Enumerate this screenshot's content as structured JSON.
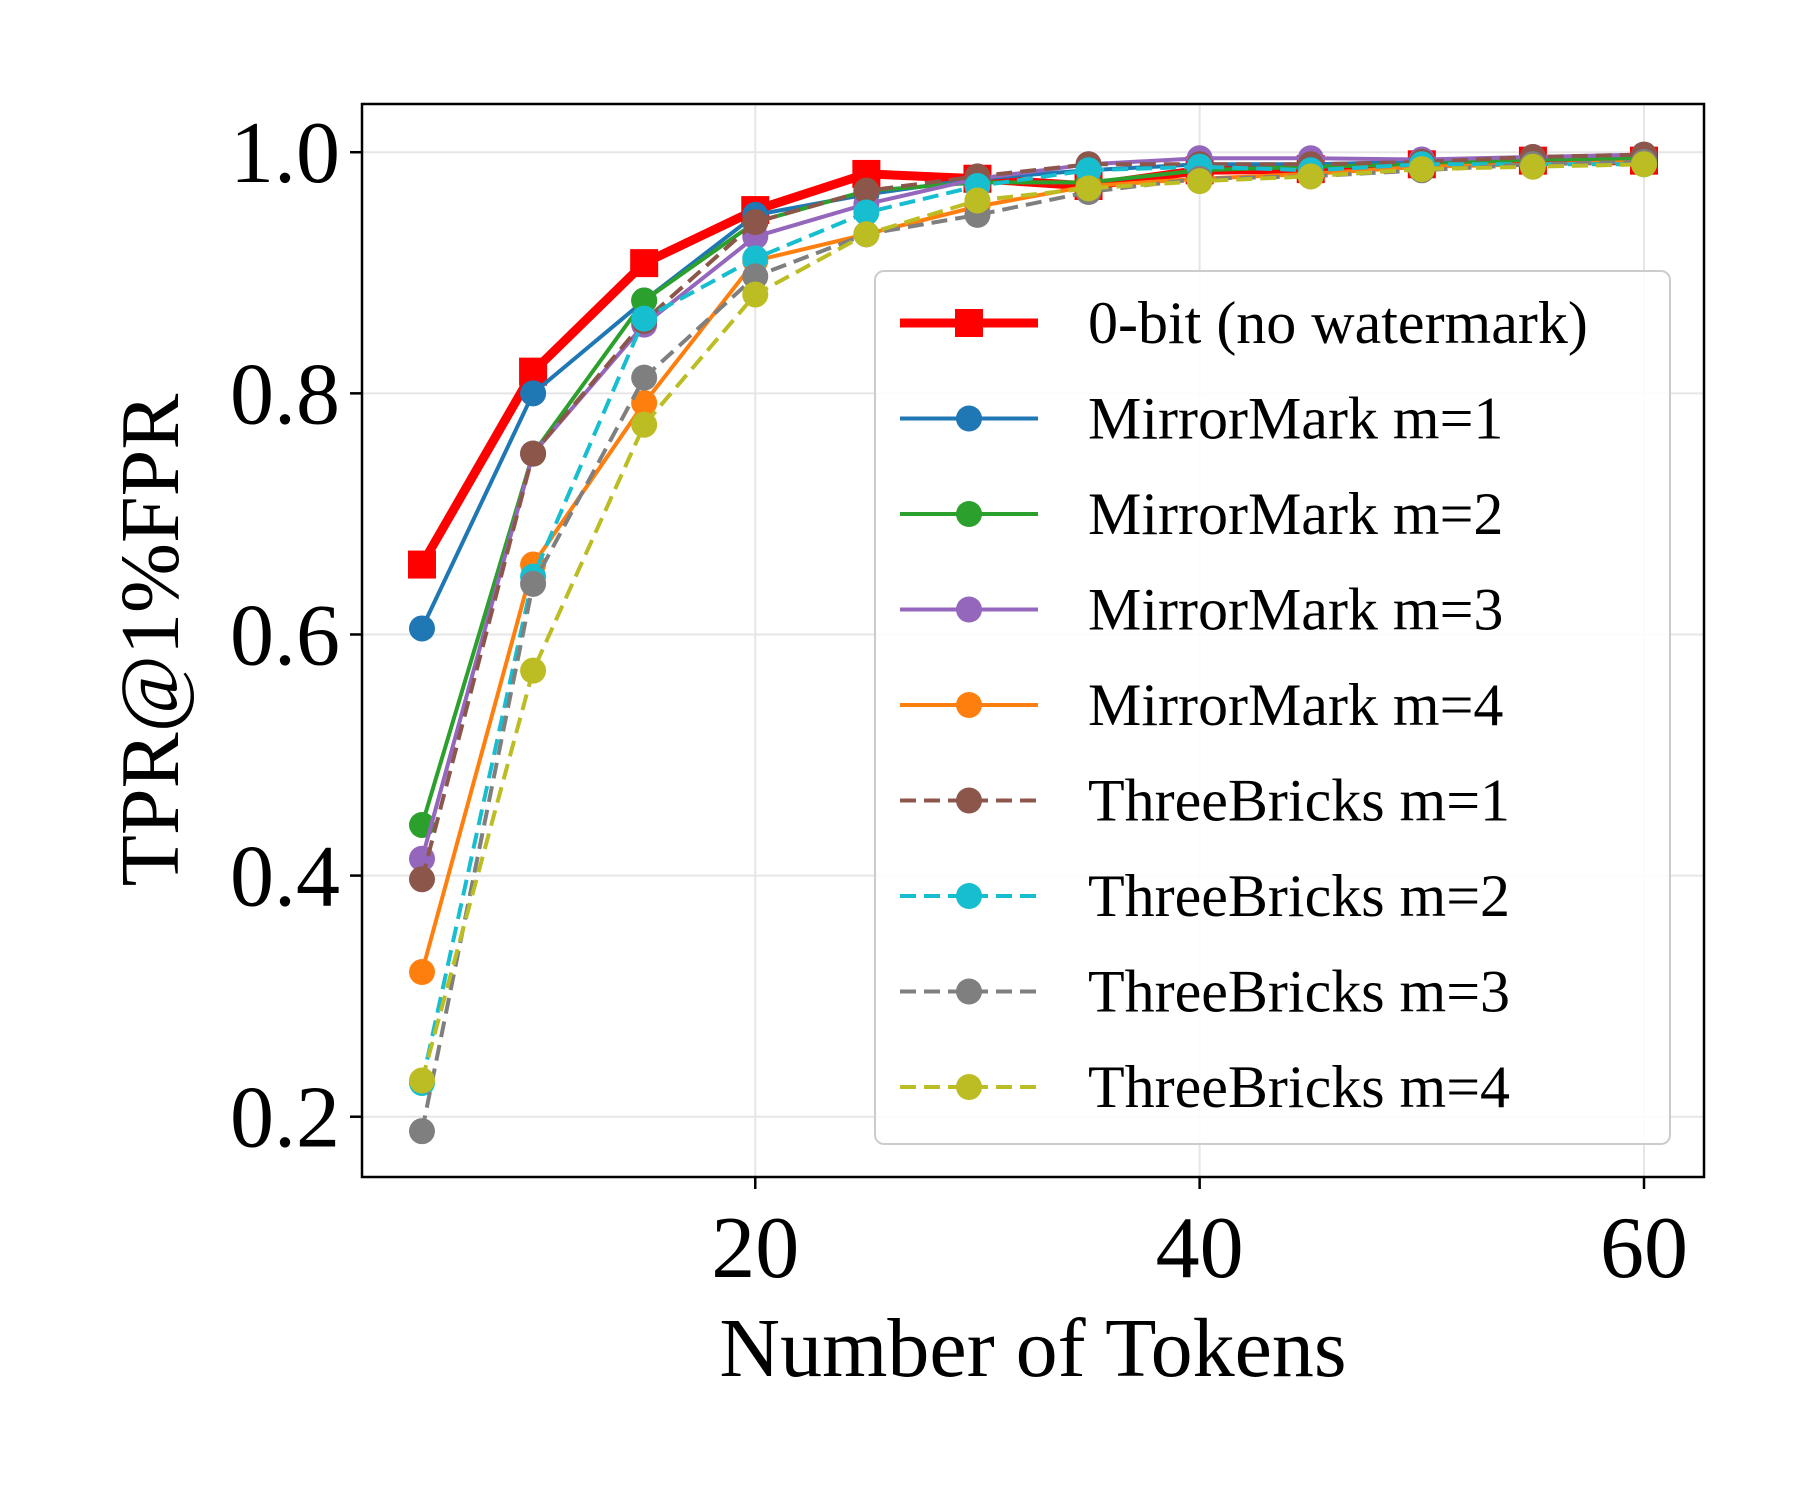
{
  "chart_data": {
    "type": "line",
    "title": "",
    "xlabel": "Number of Tokens",
    "ylabel": "TPR@1%FPR",
    "xlim": [
      2.3,
      62.7
    ],
    "ylim": [
      0.15,
      1.04
    ],
    "x_ticks": [
      20,
      40,
      60
    ],
    "x_tick_labels": [
      "20",
      "40",
      "60"
    ],
    "y_ticks": [
      0.2,
      0.4,
      0.6,
      0.8,
      1.0
    ],
    "y_tick_labels": [
      "0.2",
      "0.4",
      "0.6",
      "0.8",
      "1.0"
    ],
    "grid": true,
    "legend_position": "center-right",
    "x": [
      5,
      10,
      15,
      20,
      25,
      30,
      35,
      40,
      45,
      50,
      55,
      60
    ],
    "series": [
      {
        "name": "0-bit (no watermark)",
        "color": "#ff0000",
        "marker": "square",
        "linestyle": "solid",
        "thick": true,
        "values": [
          0.658,
          0.818,
          0.908,
          0.952,
          0.982,
          0.978,
          0.972,
          0.985,
          0.986,
          0.99,
          0.993,
          0.993
        ]
      },
      {
        "name": "MirrorMark m=1",
        "color": "#1f77b4",
        "marker": "circle",
        "linestyle": "solid",
        "values": [
          0.605,
          0.8,
          0.877,
          0.948,
          0.965,
          0.978,
          0.985,
          0.99,
          0.99,
          0.992,
          0.994,
          0.995
        ]
      },
      {
        "name": "MirrorMark m=2",
        "color": "#2ca02c",
        "marker": "circle",
        "linestyle": "solid",
        "values": [
          0.442,
          0.75,
          0.877,
          0.942,
          0.968,
          0.975,
          0.975,
          0.985,
          0.988,
          0.99,
          0.994,
          0.995
        ]
      },
      {
        "name": "MirrorMark m=3",
        "color": "#9467bd",
        "marker": "circle",
        "linestyle": "solid",
        "values": [
          0.414,
          0.75,
          0.857,
          0.93,
          0.957,
          0.978,
          0.99,
          0.995,
          0.995,
          0.994,
          0.996,
          0.998
        ]
      },
      {
        "name": "MirrorMark m=4",
        "color": "#ff7f0e",
        "marker": "circle",
        "linestyle": "solid",
        "values": [
          0.32,
          0.658,
          0.792,
          0.91,
          0.932,
          0.955,
          0.972,
          0.978,
          0.982,
          0.988,
          0.99,
          0.992
        ]
      },
      {
        "name": "ThreeBricks m=1",
        "color": "#8c564b",
        "marker": "circle",
        "linestyle": "dashed",
        "values": [
          0.397,
          0.75,
          0.86,
          0.942,
          0.968,
          0.98,
          0.99,
          0.99,
          0.99,
          0.992,
          0.996,
          0.998
        ]
      },
      {
        "name": "ThreeBricks m=2",
        "color": "#17becf",
        "marker": "circle",
        "linestyle": "dashed",
        "values": [
          0.228,
          0.648,
          0.862,
          0.912,
          0.95,
          0.972,
          0.985,
          0.988,
          0.985,
          0.99,
          0.99,
          0.99
        ]
      },
      {
        "name": "ThreeBricks m=3",
        "color": "#7f7f7f",
        "marker": "circle",
        "linestyle": "dashed",
        "values": [
          0.188,
          0.642,
          0.813,
          0.897,
          0.932,
          0.948,
          0.967,
          0.978,
          0.98,
          0.985,
          0.99,
          0.992
        ]
      },
      {
        "name": "ThreeBricks m=4",
        "color": "#bcbd22",
        "marker": "circle",
        "linestyle": "dashed",
        "values": [
          0.23,
          0.57,
          0.774,
          0.882,
          0.932,
          0.96,
          0.97,
          0.976,
          0.98,
          0.986,
          0.988,
          0.99
        ]
      }
    ]
  }
}
